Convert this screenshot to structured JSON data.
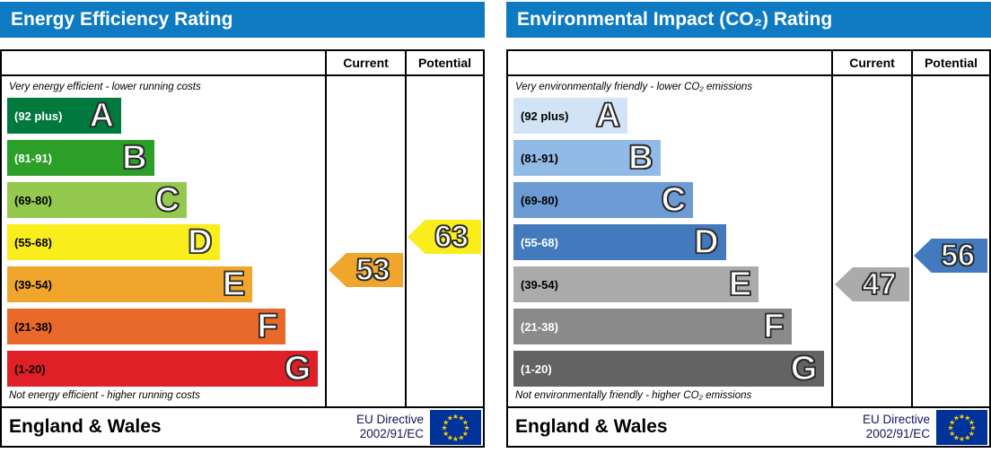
{
  "accent_blue": "#0e7ac2",
  "eu_flag": {
    "icon": "eu-flag-icon",
    "bg": "#003399",
    "star_color": "#ffcc00"
  },
  "panels": [
    {
      "title": "Energy Efficiency Rating",
      "columns": {
        "current": "Current",
        "potential": "Potential"
      },
      "top_caption": "Very energy efficient - lower running costs",
      "bottom_caption": "Not energy efficient - higher running costs",
      "bands": [
        {
          "letter": "A",
          "range": "(92 plus)",
          "color": "#00793e",
          "text_color": "#ffffff",
          "width_pct": 36.5
        },
        {
          "letter": "B",
          "range": "(81-91)",
          "color": "#2c9f29",
          "text_color": "#ffffff",
          "width_pct": 47
        },
        {
          "letter": "C",
          "range": "(69-80)",
          "color": "#95c84e",
          "text_color": "#000000",
          "width_pct": 57.5
        },
        {
          "letter": "D",
          "range": "(55-68)",
          "color": "#f9ed1c",
          "text_color": "#000000",
          "width_pct": 68
        },
        {
          "letter": "E",
          "range": "(39-54)",
          "color": "#f0a52c",
          "text_color": "#000000",
          "width_pct": 78.5
        },
        {
          "letter": "F",
          "range": "(21-38)",
          "color": "#e8692a",
          "text_color": "#000000",
          "width_pct": 89
        },
        {
          "letter": "G",
          "range": "(1-20)",
          "color": "#df2027",
          "text_color": "#000000",
          "width_pct": 99.5
        }
      ],
      "current": {
        "value": "53",
        "band": "E",
        "color": "#f0a52c"
      },
      "potential": {
        "value": "63",
        "band": "D",
        "color": "#f9ed1c"
      },
      "footer": {
        "region": "England & Wales",
        "directive_line1": "EU Directive",
        "directive_line2": "2002/91/EC"
      }
    },
    {
      "title": "Environmental Impact (CO₂) Rating",
      "columns": {
        "current": "Current",
        "potential": "Potential"
      },
      "top_caption": "Very environmentally friendly - lower CO₂ emissions",
      "bottom_caption": "Not environmentally friendly - higher CO₂ emissions",
      "bands": [
        {
          "letter": "A",
          "range": "(92 plus)",
          "color": "#d2e3f5",
          "text_color": "#000000",
          "width_pct": 36.5
        },
        {
          "letter": "B",
          "range": "(81-91)",
          "color": "#92bae7",
          "text_color": "#000000",
          "width_pct": 47
        },
        {
          "letter": "C",
          "range": "(69-80)",
          "color": "#6c9bd4",
          "text_color": "#000000",
          "width_pct": 57.5
        },
        {
          "letter": "D",
          "range": "(55-68)",
          "color": "#4379bd",
          "text_color": "#ffffff",
          "width_pct": 68
        },
        {
          "letter": "E",
          "range": "(39-54)",
          "color": "#ababab",
          "text_color": "#000000",
          "width_pct": 78.5
        },
        {
          "letter": "F",
          "range": "(21-38)",
          "color": "#8a8a8a",
          "text_color": "#ffffff",
          "width_pct": 89
        },
        {
          "letter": "G",
          "range": "(1-20)",
          "color": "#636363",
          "text_color": "#ffffff",
          "width_pct": 99.5
        }
      ],
      "current": {
        "value": "47",
        "band": "E",
        "color": "#ababab"
      },
      "potential": {
        "value": "56",
        "band": "D",
        "color": "#4379bd"
      },
      "footer": {
        "region": "England & Wales",
        "directive_line1": "EU Directive",
        "directive_line2": "2002/91/EC"
      }
    }
  ],
  "chart_data": [
    {
      "type": "bar",
      "title": "Energy Efficiency Rating",
      "categories": [
        "A",
        "B",
        "C",
        "D",
        "E",
        "F",
        "G"
      ],
      "band_ranges": [
        "92 plus",
        "81-91",
        "69-80",
        "55-68",
        "39-54",
        "21-38",
        "1-20"
      ],
      "band_colors": [
        "#00793e",
        "#2c9f29",
        "#95c84e",
        "#f9ed1c",
        "#f0a52c",
        "#e8692a",
        "#df2027"
      ],
      "bar_widths_pct": [
        36.5,
        47,
        57.5,
        68,
        78.5,
        89,
        99.5
      ],
      "series": [
        {
          "name": "Current",
          "values": [
            53
          ],
          "band": "E"
        },
        {
          "name": "Potential",
          "values": [
            63
          ],
          "band": "D"
        }
      ],
      "top_label": "Very energy efficient - lower running costs",
      "bottom_label": "Not energy efficient - higher running costs",
      "footer": "England & Wales — EU Directive 2002/91/EC"
    },
    {
      "type": "bar",
      "title": "Environmental Impact (CO₂) Rating",
      "categories": [
        "A",
        "B",
        "C",
        "D",
        "E",
        "F",
        "G"
      ],
      "band_ranges": [
        "92 plus",
        "81-91",
        "69-80",
        "55-68",
        "39-54",
        "21-38",
        "1-20"
      ],
      "band_colors": [
        "#d2e3f5",
        "#92bae7",
        "#6c9bd4",
        "#4379bd",
        "#ababab",
        "#8a8a8a",
        "#636363"
      ],
      "bar_widths_pct": [
        36.5,
        47,
        57.5,
        68,
        78.5,
        89,
        99.5
      ],
      "series": [
        {
          "name": "Current",
          "values": [
            47
          ],
          "band": "E"
        },
        {
          "name": "Potential",
          "values": [
            56
          ],
          "band": "D"
        }
      ],
      "top_label": "Very environmentally friendly - lower CO₂ emissions",
      "bottom_label": "Not environmentally friendly - higher CO₂ emissions",
      "footer": "England & Wales — EU Directive 2002/91/EC"
    }
  ]
}
